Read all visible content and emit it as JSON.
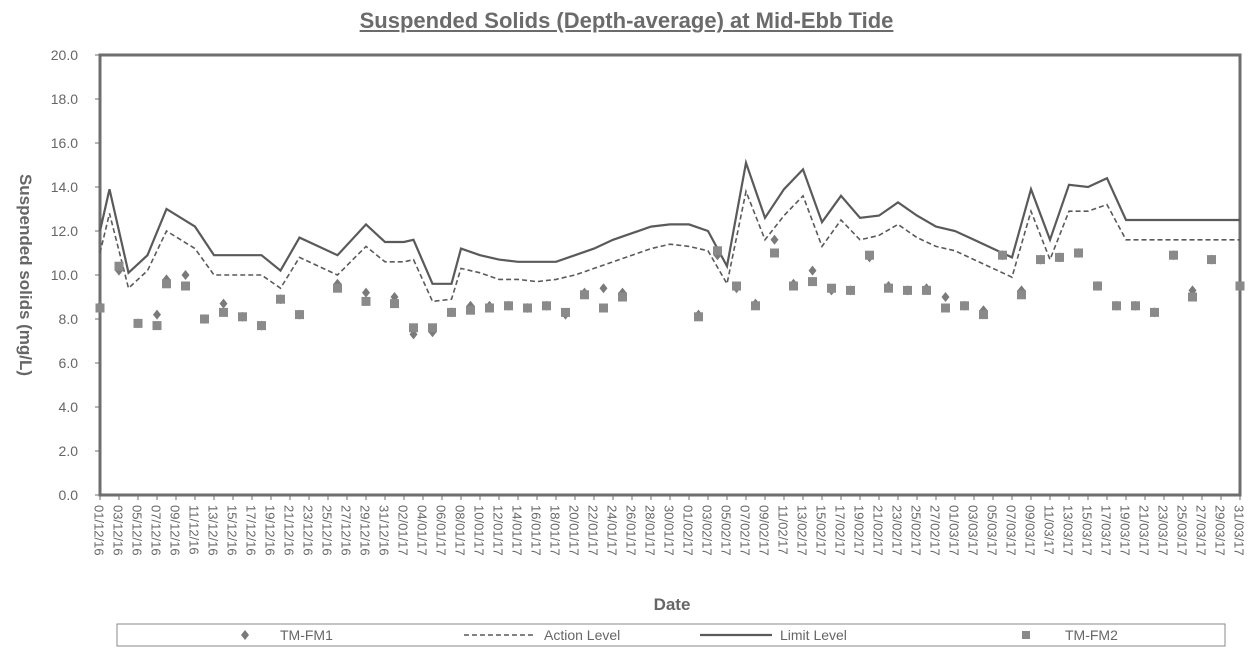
{
  "chart_data": {
    "type": "line",
    "title": "Suspended Solids (Depth-average) at Mid-Ebb Tide",
    "xlabel": "Date",
    "ylabel": "Suspended solids (mg/L)",
    "ylim": [
      0,
      20
    ],
    "yticks": [
      "0.0",
      "2.0",
      "4.0",
      "6.0",
      "8.0",
      "10.0",
      "12.0",
      "14.0",
      "16.0",
      "18.0",
      "20.0"
    ],
    "xlim": [
      "2016-12-01",
      "2017-03-31"
    ],
    "xtick_labels": [
      "01/12/16",
      "03/12/16",
      "05/12/16",
      "07/12/16",
      "09/12/16",
      "11/12/16",
      "13/12/16",
      "15/12/16",
      "17/12/16",
      "19/12/16",
      "21/12/16",
      "23/12/16",
      "25/12/16",
      "27/12/16",
      "29/12/16",
      "31/12/16",
      "02/01/17",
      "04/01/17",
      "06/01/17",
      "08/01/17",
      "10/01/17",
      "12/01/17",
      "14/01/17",
      "16/01/17",
      "18/01/17",
      "20/01/17",
      "22/01/17",
      "24/01/17",
      "26/01/17",
      "28/01/17",
      "30/01/17",
      "01/02/17",
      "03/02/17",
      "05/02/17",
      "07/02/17",
      "09/02/17",
      "11/02/17",
      "13/02/17",
      "15/02/17",
      "17/02/17",
      "19/02/17",
      "21/02/17",
      "23/02/17",
      "25/02/17",
      "27/02/17",
      "01/03/17",
      "03/03/17",
      "05/03/17",
      "07/03/17",
      "09/03/17",
      "11/03/17",
      "13/03/17",
      "15/03/17",
      "17/03/17",
      "19/03/17",
      "21/03/17",
      "23/03/17",
      "25/03/17",
      "27/03/17",
      "29/03/17",
      "31/03/17"
    ],
    "grid": false,
    "legend_position": "bottom",
    "series": [
      {
        "name": "TM-FM1",
        "kind": "scatter",
        "marker": "diamond",
        "color": "#7a7a7a",
        "x": [
          "2016-12-01",
          "2016-12-03",
          "2016-12-05",
          "2016-12-07",
          "2016-12-08",
          "2016-12-10",
          "2016-12-12",
          "2016-12-14",
          "2016-12-16",
          "2016-12-18",
          "2016-12-20",
          "2016-12-22",
          "2016-12-26",
          "2016-12-29",
          "2017-01-01",
          "2017-01-03",
          "2017-01-05",
          "2017-01-07",
          "2017-01-09",
          "2017-01-11",
          "2017-01-13",
          "2017-01-15",
          "2017-01-17",
          "2017-01-19",
          "2017-01-21",
          "2017-01-23",
          "2017-01-25",
          "2017-02-02",
          "2017-02-04",
          "2017-02-06",
          "2017-02-08",
          "2017-02-10",
          "2017-02-12",
          "2017-02-14",
          "2017-02-16",
          "2017-02-18",
          "2017-02-20",
          "2017-02-22",
          "2017-02-24",
          "2017-02-26",
          "2017-02-28",
          "2017-03-02",
          "2017-03-04",
          "2017-03-06",
          "2017-03-08",
          "2017-03-10",
          "2017-03-12",
          "2017-03-14",
          "2017-03-16",
          "2017-03-18",
          "2017-03-20",
          "2017-03-22",
          "2017-03-24",
          "2017-03-26",
          "2017-03-28",
          "2017-03-31"
        ],
        "values": [
          8.6,
          10.2,
          7.8,
          8.2,
          9.8,
          10.0,
          8.0,
          8.7,
          8.1,
          7.7,
          8.9,
          8.2,
          9.6,
          9.2,
          9.0,
          7.3,
          7.4,
          8.3,
          8.6,
          8.6,
          8.6,
          8.5,
          8.6,
          8.2,
          9.2,
          9.4,
          9.2,
          8.2,
          10.9,
          9.4,
          8.7,
          11.6,
          9.6,
          10.2,
          9.3,
          9.3,
          10.8,
          9.5,
          9.3,
          9.4,
          9.0,
          8.6,
          8.4,
          10.9,
          9.3,
          10.7,
          10.8,
          11.0,
          9.5,
          8.6,
          8.6,
          8.3,
          10.9,
          9.3,
          10.7,
          9.5
        ]
      },
      {
        "name": "Action Level",
        "kind": "line",
        "dash": "dashed",
        "color": "#5a5a5a",
        "x": [
          "2016-12-01",
          "2016-12-02",
          "2016-12-04",
          "2016-12-06",
          "2016-12-08",
          "2016-12-11",
          "2016-12-13",
          "2016-12-14",
          "2016-12-16",
          "2016-12-18",
          "2016-12-20",
          "2016-12-22",
          "2016-12-24",
          "2016-12-26",
          "2016-12-29",
          "2016-12-31",
          "2017-01-02",
          "2017-01-03",
          "2017-01-05",
          "2017-01-07",
          "2017-01-08",
          "2017-01-10",
          "2017-01-12",
          "2017-01-14",
          "2017-01-16",
          "2017-01-18",
          "2017-01-20",
          "2017-01-22",
          "2017-01-24",
          "2017-01-26",
          "2017-01-28",
          "2017-01-30",
          "2017-02-01",
          "2017-02-03",
          "2017-02-05",
          "2017-02-07",
          "2017-02-09",
          "2017-02-11",
          "2017-02-13",
          "2017-02-15",
          "2017-02-17",
          "2017-02-19",
          "2017-02-21",
          "2017-02-23",
          "2017-02-25",
          "2017-02-27",
          "2017-03-01",
          "2017-03-03",
          "2017-03-05",
          "2017-03-07",
          "2017-03-09",
          "2017-03-11",
          "2017-03-13",
          "2017-03-15",
          "2017-03-17",
          "2017-03-19",
          "2017-03-21",
          "2017-03-23",
          "2017-03-25",
          "2017-03-27",
          "2017-03-29",
          "2017-03-30",
          "2017-03-31"
        ],
        "values": [
          11.0,
          12.8,
          9.4,
          10.2,
          12.0,
          11.2,
          10.0,
          10.0,
          10.0,
          10.0,
          9.4,
          10.8,
          10.4,
          10.0,
          11.3,
          10.6,
          10.6,
          10.7,
          8.8,
          8.9,
          10.3,
          10.1,
          9.8,
          9.8,
          9.7,
          9.8,
          10.0,
          10.3,
          10.6,
          10.9,
          11.2,
          11.4,
          11.3,
          11.1,
          9.6,
          13.8,
          11.6,
          12.7,
          13.6,
          11.3,
          12.5,
          11.6,
          11.8,
          12.3,
          11.7,
          11.3,
          11.1,
          10.7,
          10.3,
          9.9,
          12.9,
          10.7,
          12.9,
          12.9,
          13.2,
          11.6,
          11.6,
          11.6,
          11.6,
          11.6,
          11.6,
          11.6,
          11.6
        ]
      },
      {
        "name": "Limit Level",
        "kind": "line",
        "dash": "solid",
        "color": "#5a5a5a",
        "x": [
          "2016-12-01",
          "2016-12-02",
          "2016-12-04",
          "2016-12-06",
          "2016-12-08",
          "2016-12-11",
          "2016-12-13",
          "2016-12-14",
          "2016-12-16",
          "2016-12-18",
          "2016-12-20",
          "2016-12-22",
          "2016-12-24",
          "2016-12-26",
          "2016-12-29",
          "2016-12-31",
          "2017-01-02",
          "2017-01-03",
          "2017-01-05",
          "2017-01-07",
          "2017-01-08",
          "2017-01-10",
          "2017-01-12",
          "2017-01-14",
          "2017-01-16",
          "2017-01-18",
          "2017-01-20",
          "2017-01-22",
          "2017-01-24",
          "2017-01-26",
          "2017-01-28",
          "2017-01-30",
          "2017-02-01",
          "2017-02-03",
          "2017-02-05",
          "2017-02-07",
          "2017-02-09",
          "2017-02-11",
          "2017-02-13",
          "2017-02-15",
          "2017-02-17",
          "2017-02-19",
          "2017-02-21",
          "2017-02-23",
          "2017-02-25",
          "2017-02-27",
          "2017-03-01",
          "2017-03-03",
          "2017-03-05",
          "2017-03-07",
          "2017-03-09",
          "2017-03-11",
          "2017-03-13",
          "2017-03-15",
          "2017-03-17",
          "2017-03-19",
          "2017-03-21",
          "2017-03-23",
          "2017-03-25",
          "2017-03-27",
          "2017-03-29",
          "2017-03-30",
          "2017-03-31"
        ],
        "values": [
          12.0,
          13.9,
          10.1,
          10.9,
          13.0,
          12.2,
          10.9,
          10.9,
          10.9,
          10.9,
          10.2,
          11.7,
          11.3,
          10.9,
          12.3,
          11.5,
          11.5,
          11.6,
          9.6,
          9.6,
          11.2,
          10.9,
          10.7,
          10.6,
          10.6,
          10.6,
          10.9,
          11.2,
          11.6,
          11.9,
          12.2,
          12.3,
          12.3,
          12.0,
          10.4,
          15.1,
          12.6,
          13.9,
          14.8,
          12.4,
          13.6,
          12.6,
          12.7,
          13.3,
          12.7,
          12.2,
          12.0,
          11.6,
          11.2,
          10.8,
          13.9,
          11.6,
          14.1,
          14.0,
          14.4,
          12.5,
          12.5,
          12.5,
          12.5,
          12.5,
          12.5,
          12.5,
          12.5
        ]
      },
      {
        "name": "TM-FM2",
        "kind": "scatter",
        "marker": "square",
        "color": "#8a8a8a",
        "x": [
          "2016-12-01",
          "2016-12-03",
          "2016-12-05",
          "2016-12-07",
          "2016-12-08",
          "2016-12-10",
          "2016-12-12",
          "2016-12-14",
          "2016-12-16",
          "2016-12-18",
          "2016-12-20",
          "2016-12-22",
          "2016-12-26",
          "2016-12-29",
          "2017-01-01",
          "2017-01-03",
          "2017-01-05",
          "2017-01-07",
          "2017-01-09",
          "2017-01-11",
          "2017-01-13",
          "2017-01-15",
          "2017-01-17",
          "2017-01-19",
          "2017-01-21",
          "2017-01-23",
          "2017-01-25",
          "2017-02-02",
          "2017-02-04",
          "2017-02-06",
          "2017-02-08",
          "2017-02-10",
          "2017-02-12",
          "2017-02-14",
          "2017-02-16",
          "2017-02-18",
          "2017-02-20",
          "2017-02-22",
          "2017-02-24",
          "2017-02-26",
          "2017-02-28",
          "2017-03-02",
          "2017-03-04",
          "2017-03-06",
          "2017-03-08",
          "2017-03-10",
          "2017-03-12",
          "2017-03-14",
          "2017-03-16",
          "2017-03-18",
          "2017-03-20",
          "2017-03-22",
          "2017-03-24",
          "2017-03-26",
          "2017-03-28",
          "2017-03-31"
        ],
        "values": [
          8.5,
          10.4,
          7.8,
          7.7,
          9.6,
          9.5,
          8.0,
          8.3,
          8.1,
          7.7,
          8.9,
          8.2,
          9.4,
          8.8,
          8.7,
          7.6,
          7.6,
          8.3,
          8.4,
          8.5,
          8.6,
          8.5,
          8.6,
          8.3,
          9.1,
          8.5,
          9.0,
          8.1,
          11.1,
          9.5,
          8.6,
          11.0,
          9.5,
          9.7,
          9.4,
          9.3,
          10.9,
          9.4,
          9.3,
          9.3,
          8.5,
          8.6,
          8.2,
          10.9,
          9.1,
          10.7,
          10.8,
          11.0,
          9.5,
          8.6,
          8.6,
          8.3,
          10.9,
          9.0,
          10.7,
          9.5
        ]
      }
    ]
  }
}
